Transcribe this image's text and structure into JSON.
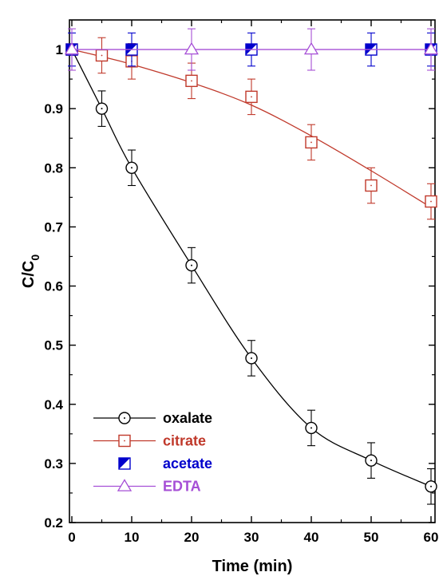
{
  "chart_data": {
    "type": "line",
    "xlabel": "Time (min)",
    "ylabel_main": "C/C",
    "ylabel_sub": "0",
    "xlim": [
      0,
      60
    ],
    "ylim": [
      0.2,
      1.05
    ],
    "xticks": [
      "0",
      "10",
      "20",
      "30",
      "40",
      "50",
      "60"
    ],
    "yticks": [
      "0.2",
      "0.3",
      "0.4",
      "0.5",
      "0.6",
      "0.7",
      "0.8",
      "0.9",
      "1"
    ],
    "grid": false,
    "legend_position": "bottom-left",
    "series": [
      {
        "name": "oxalate",
        "color": "#000000",
        "marker": "circle-dot",
        "x": [
          0,
          5,
          10,
          20,
          30,
          40,
          50,
          60
        ],
        "y": [
          1.0,
          0.9,
          0.8,
          0.635,
          0.478,
          0.36,
          0.305,
          0.261
        ],
        "err": [
          0,
          0.03,
          0.03,
          0.03,
          0.03,
          0.03,
          0.03,
          0.03
        ],
        "fit_y": [
          1.0,
          0.9,
          0.8,
          0.635,
          0.478,
          0.36,
          0.305,
          0.261
        ]
      },
      {
        "name": "citrate",
        "color": "#c0392b",
        "marker": "square-dot",
        "x": [
          0,
          5,
          10,
          20,
          30,
          40,
          50,
          60
        ],
        "y": [
          1.0,
          0.99,
          0.98,
          0.947,
          0.92,
          0.843,
          0.77,
          0.743
        ],
        "err": [
          0,
          0.03,
          0.03,
          0.03,
          0.03,
          0.03,
          0.03,
          0.03
        ],
        "fit_y": [
          1.0,
          0.988,
          0.975,
          0.944,
          0.906,
          0.854,
          0.795,
          0.733
        ]
      },
      {
        "name": "acetate",
        "color": "#0000cc",
        "marker": "half-square",
        "x": [
          0,
          10,
          30,
          50,
          60
        ],
        "y": [
          1.0,
          1.0,
          1.0,
          1.0,
          1.0
        ],
        "err": [
          0.028,
          0.028,
          0.028,
          0.028,
          0.028
        ],
        "fit_y": null
      },
      {
        "name": "EDTA",
        "color": "#a64fd6",
        "marker": "triangle",
        "x": [
          0,
          20,
          40,
          60
        ],
        "y": [
          1.0,
          1.0,
          1.0,
          1.0
        ],
        "err": [
          0.035,
          0.035,
          0.035,
          0.035
        ],
        "fit_y": [
          1.0,
          1.0,
          1.0,
          1.0
        ]
      }
    ],
    "legend": [
      {
        "label": "oxalate",
        "color": "#000000",
        "marker": "circle-dot",
        "line": true
      },
      {
        "label": "citrate",
        "color": "#c0392b",
        "marker": "square-dot",
        "line": true
      },
      {
        "label": "acetate",
        "color": "#0000cc",
        "marker": "half-square",
        "line": false
      },
      {
        "label": "EDTA",
        "color": "#a64fd6",
        "marker": "triangle",
        "line": true
      }
    ]
  }
}
